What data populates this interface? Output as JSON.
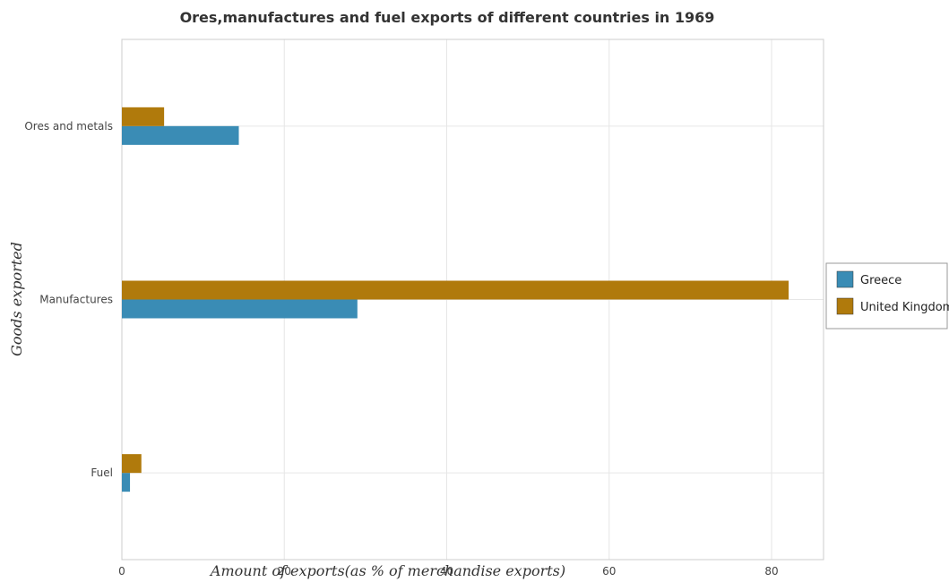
{
  "chart_data": {
    "type": "bar",
    "orientation": "horizontal",
    "title": "Ores,manufactures and fuel exports of different countries in 1969",
    "xlabel": "Amount of exports(as % of merchandise exports)",
    "ylabel": "Goods exported",
    "categories": [
      "Ores and metals",
      "Manufactures",
      "Fuel"
    ],
    "series": [
      {
        "name": "Greece",
        "color": "#3a8cb5",
        "values": [
          14.4,
          29.0,
          1.0
        ]
      },
      {
        "name": "United Kingdom",
        "color": "#b07a0c",
        "values": [
          5.2,
          82.1,
          2.4
        ]
      }
    ],
    "xlim": [
      0,
      86.4
    ],
    "xticks": [
      0,
      20,
      40,
      60,
      80
    ],
    "grid": true,
    "legend_position": "right"
  }
}
